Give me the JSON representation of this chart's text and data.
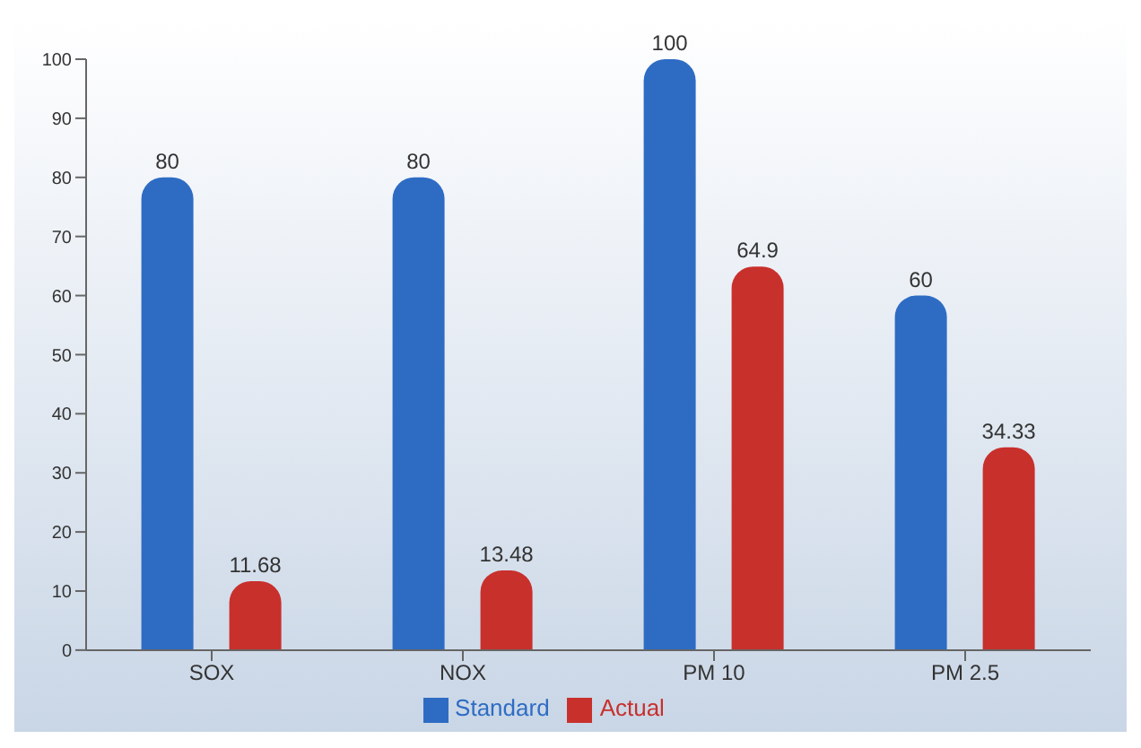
{
  "chart_data": {
    "type": "bar",
    "categories": [
      "SOX",
      "NOX",
      "PM 10",
      "PM 2.5"
    ],
    "series": [
      {
        "name": "Standard",
        "color": "#2e6cc4",
        "values": [
          80,
          80,
          100,
          60
        ]
      },
      {
        "name": "Actual",
        "color": "#c8302c",
        "values": [
          11.68,
          13.48,
          64.9,
          34.33
        ]
      }
    ],
    "ylim": [
      0,
      100
    ],
    "yticks": [
      0,
      10,
      20,
      30,
      40,
      50,
      60,
      70,
      80,
      90,
      100
    ],
    "data_labels": true,
    "legend": "bottom"
  }
}
